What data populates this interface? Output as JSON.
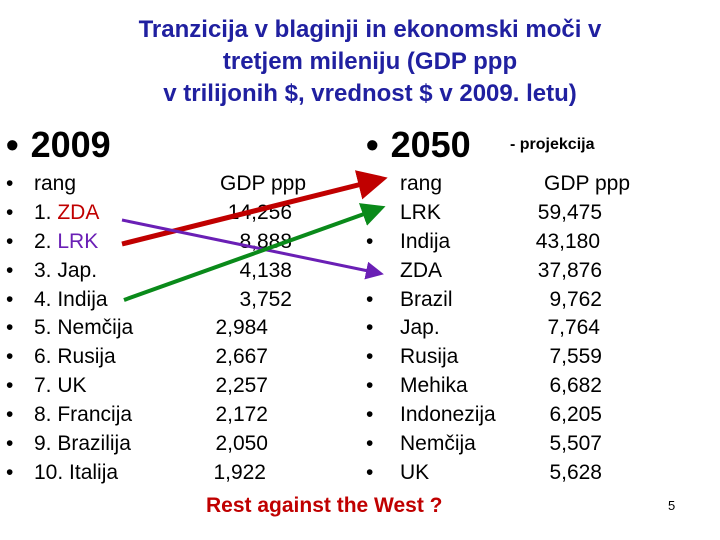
{
  "title": [
    "Tranzicija v blaginji in ekonomski moči v",
    "tretjem mileniju (GDP ppp",
    "v trilijonih $,  vrednost $ v 2009. letu)"
  ],
  "left": {
    "bullet": "•",
    "year": "2009",
    "header_rank": "rang",
    "header_gdp": "GDP ppp",
    "rows": [
      {
        "rank": "1.  ZDA",
        "gdp": "14,256"
      },
      {
        "rank": "2.  LRK",
        "gdp": "8,888"
      },
      {
        "rank": "3.  Jap.",
        "gdp": "4,138"
      },
      {
        "rank": "4.  Indija",
        "gdp": "3,752"
      },
      {
        "rank": "5.  Nemčija",
        "gdp": "2,984"
      },
      {
        "rank": "6.  Rusija",
        "gdp": "2,667"
      },
      {
        "rank": "7.  UK",
        "gdp": "2,257"
      },
      {
        "rank": "8.  Francija",
        "gdp": "2,172"
      },
      {
        "rank": "9.  Brazilija",
        "gdp": "2,050"
      },
      {
        "rank": "10. Italija",
        "gdp": "1,922"
      }
    ]
  },
  "right": {
    "bullet": "•",
    "year": "2050",
    "note": "- projekcija",
    "header_rank": "rang",
    "header_gdp": "GDP ppp",
    "rows": [
      {
        "country": "LRK",
        "gdp": "59,475"
      },
      {
        "country": "Indija",
        "gdp": "43,180"
      },
      {
        "country": "ZDA",
        "gdp": "37,876"
      },
      {
        "country": "Brazil",
        "gdp": "9,762"
      },
      {
        "country": "Jap.",
        "gdp": "7,764"
      },
      {
        "country": "Rusija",
        "gdp": "7,559"
      },
      {
        "country": "Mehika",
        "gdp": "6,682"
      },
      {
        "country": "Indonezija",
        "gdp": "6,205"
      },
      {
        "country": "Nemčija",
        "gdp": "5,507"
      },
      {
        "country": "UK",
        "gdp": "5,628"
      }
    ]
  },
  "footer": "Rest against the West ?",
  "page_number": "5",
  "colors": {
    "title": "#2020a0",
    "red": "#c00000",
    "purple": "#6a1fb5",
    "green": "#0a8a1a"
  }
}
